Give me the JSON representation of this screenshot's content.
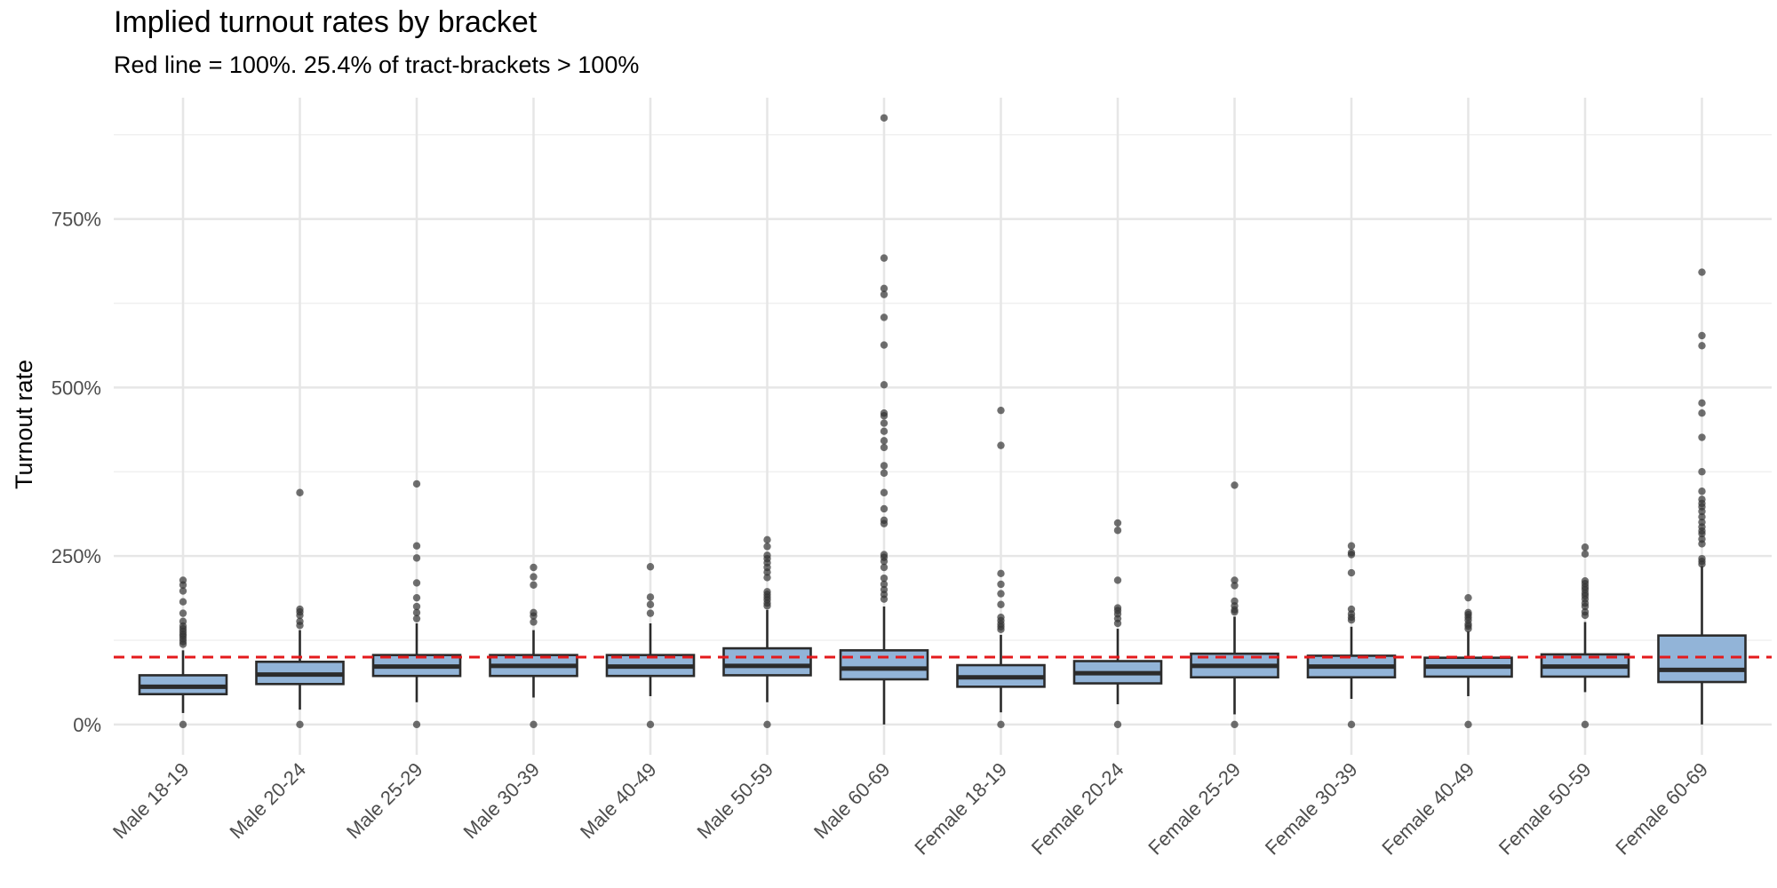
{
  "chart_data": {
    "type": "boxplot",
    "title": "Implied turnout rates by bracket",
    "subtitle": "Red line = 100%. 25.4% of tract-brackets > 100%",
    "xlabel": "",
    "ylabel": "Turnout rate",
    "ylim": [
      -0.45,
      9.3
    ],
    "y_ticks": [
      0,
      2.5,
      5,
      7.5
    ],
    "y_tick_labels": [
      "0%",
      "250%",
      "500%",
      "750%"
    ],
    "reference_line": {
      "value": 1.0,
      "color": "#e41a1c",
      "style": "dashed"
    },
    "grid": true,
    "box_fill": "#92b4d8",
    "box_stroke": "#2b2b2b",
    "outlier_color": "#333333",
    "categories": [
      "Male 18-19",
      "Male 20-24",
      "Male 25-29",
      "Male 30-39",
      "Male 40-49",
      "Male 50-59",
      "Male 60-69",
      "Female 18-19",
      "Female 20-24",
      "Female 25-29",
      "Female 30-39",
      "Female 40-49",
      "Female 50-59",
      "Female 60-69"
    ],
    "boxes": [
      {
        "q1": 0.45,
        "median": 0.56,
        "q3": 0.73,
        "whisker_low": 0.17,
        "whisker_high": 1.1,
        "outliers": [
          0,
          1.19,
          1.23,
          1.27,
          1.31,
          1.34,
          1.38,
          1.42,
          1.46,
          1.53,
          1.65,
          1.82,
          1.98,
          2.07,
          2.14
        ]
      },
      {
        "q1": 0.6,
        "median": 0.74,
        "q3": 0.93,
        "whisker_low": 0.22,
        "whisker_high": 1.4,
        "outliers": [
          0,
          1.47,
          1.53,
          1.62,
          1.67,
          1.71,
          3.44
        ]
      },
      {
        "q1": 0.72,
        "median": 0.86,
        "q3": 1.03,
        "whisker_low": 0.33,
        "whisker_high": 1.5,
        "outliers": [
          0,
          1.57,
          1.66,
          1.75,
          1.88,
          2.1,
          2.47,
          2.65,
          3.57
        ]
      },
      {
        "q1": 0.72,
        "median": 0.87,
        "q3": 1.03,
        "whisker_low": 0.4,
        "whisker_high": 1.4,
        "outliers": [
          0,
          1.52,
          1.61,
          1.66,
          2.07,
          2.19,
          2.33
        ]
      },
      {
        "q1": 0.72,
        "median": 0.86,
        "q3": 1.03,
        "whisker_low": 0.42,
        "whisker_high": 1.5,
        "outliers": [
          0,
          1.65,
          1.78,
          1.89,
          2.34
        ]
      },
      {
        "q1": 0.73,
        "median": 0.87,
        "q3": 1.13,
        "whisker_low": 0.33,
        "whisker_high": 1.7,
        "outliers": [
          0,
          1.76,
          1.8,
          1.85,
          1.89,
          1.93,
          1.97,
          2.18,
          2.26,
          2.33,
          2.4,
          2.46,
          2.51,
          2.64,
          2.74
        ]
      },
      {
        "q1": 0.67,
        "median": 0.83,
        "q3": 1.1,
        "whisker_low": 0,
        "whisker_high": 1.75,
        "outliers": [
          1.86,
          1.93,
          2.0,
          2.08,
          2.17,
          2.33,
          2.42,
          2.48,
          2.52,
          2.98,
          3.03,
          3.2,
          3.44,
          3.73,
          3.84,
          4.11,
          4.21,
          4.35,
          4.47,
          4.58,
          4.62,
          5.04,
          5.63,
          6.04,
          6.38,
          6.47,
          6.92,
          9.0
        ]
      },
      {
        "q1": 0.56,
        "median": 0.7,
        "q3": 0.88,
        "whisker_low": 0.18,
        "whisker_high": 1.33,
        "outliers": [
          0,
          1.41,
          1.45,
          1.49,
          1.54,
          1.59,
          1.78,
          1.94,
          2.08,
          2.24,
          4.14,
          4.66
        ]
      },
      {
        "q1": 0.61,
        "median": 0.76,
        "q3": 0.94,
        "whisker_low": 0.3,
        "whisker_high": 1.42,
        "outliers": [
          0,
          1.5,
          1.57,
          1.64,
          1.69,
          1.73,
          2.14,
          2.88,
          2.99
        ]
      },
      {
        "q1": 0.7,
        "median": 0.87,
        "q3": 1.05,
        "whisker_low": 0.15,
        "whisker_high": 1.6,
        "outliers": [
          0,
          1.67,
          1.7,
          1.76,
          1.83,
          2.06,
          2.14,
          3.55
        ]
      },
      {
        "q1": 0.7,
        "median": 0.86,
        "q3": 1.02,
        "whisker_low": 0.38,
        "whisker_high": 1.45,
        "outliers": [
          0,
          1.55,
          1.59,
          1.64,
          1.71,
          2.25,
          2.52,
          2.55,
          2.65
        ]
      },
      {
        "q1": 0.71,
        "median": 0.86,
        "q3": 0.99,
        "whisker_low": 0.42,
        "whisker_high": 1.38,
        "outliers": [
          0,
          1.42,
          1.46,
          1.49,
          1.55,
          1.59,
          1.63,
          1.66,
          1.88
        ]
      },
      {
        "q1": 0.71,
        "median": 0.86,
        "q3": 1.04,
        "whisker_low": 0.48,
        "whisker_high": 1.52,
        "outliers": [
          0,
          1.62,
          1.67,
          1.75,
          1.8,
          1.86,
          1.91,
          1.95,
          2.0,
          2.04,
          2.09,
          2.13,
          2.53,
          2.63
        ]
      },
      {
        "q1": 0.63,
        "median": 0.81,
        "q3": 1.32,
        "whisker_low": 0,
        "whisker_high": 2.35,
        "outliers": [
          2.38,
          2.42,
          2.46,
          2.68,
          2.75,
          2.83,
          2.87,
          2.93,
          3.0,
          3.08,
          3.16,
          3.23,
          3.28,
          3.34,
          3.46,
          3.75,
          4.26,
          4.62,
          4.77,
          5.62,
          5.77,
          6.71
        ]
      }
    ]
  }
}
